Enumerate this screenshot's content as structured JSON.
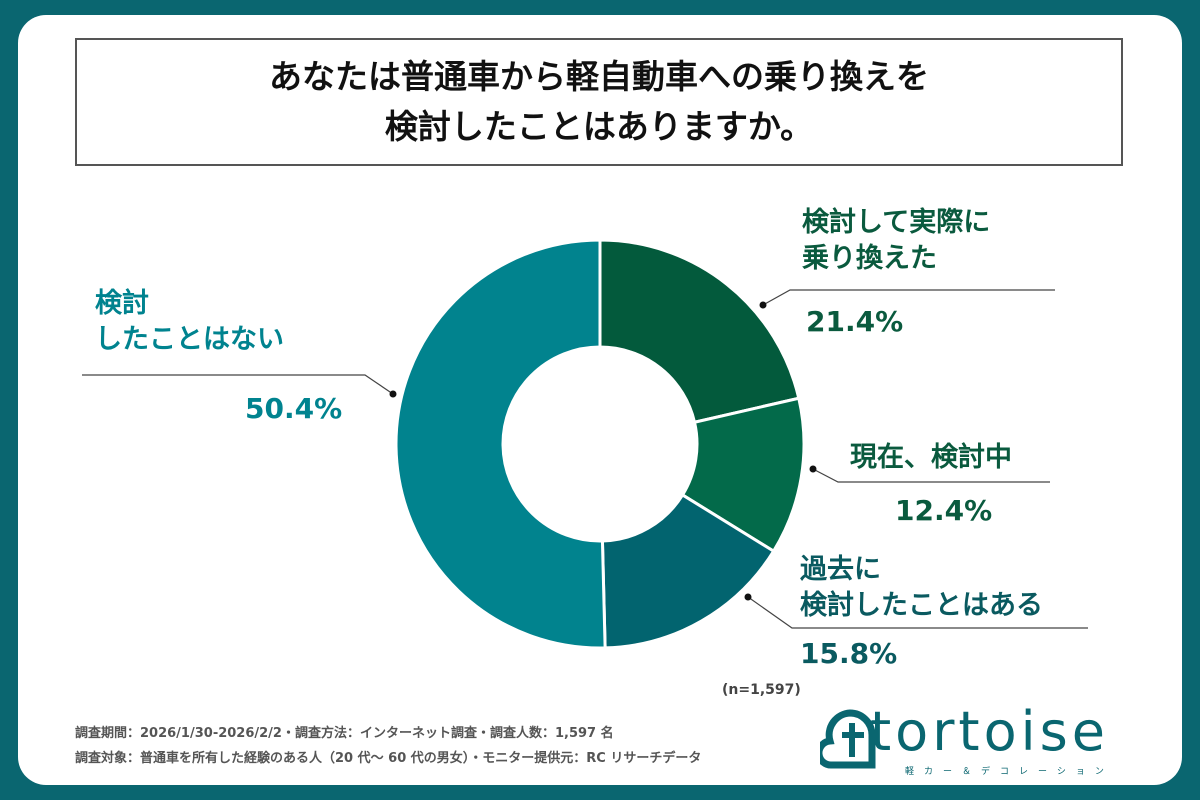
{
  "chart_data": {
    "type": "pie",
    "title": "あなたは普通車から軽自動車への乗り換えを\n検討したことはありますか。",
    "donut": true,
    "start": "top, clockwise",
    "slices": [
      {
        "label": "検討して実際に\n乗り換えた",
        "value": 21.4,
        "display": "21.4%",
        "color": "#035a3c",
        "text_color": "#0a5a3e"
      },
      {
        "label": "現在、検討中",
        "value": 12.4,
        "display": "12.4%",
        "color": "#036a4a",
        "text_color": "#0a5a3e"
      },
      {
        "label": "過去に\n検討したことはある",
        "value": 15.8,
        "display": "15.8%",
        "color": "#02646f",
        "text_color": "#0a5a60"
      },
      {
        "label": "検討\nしたことはない",
        "value": 50.4,
        "display": "50.4%",
        "color": "#01838e",
        "text_color": "#00838f"
      }
    ],
    "sample_size": "(n=1,597)"
  },
  "footer": {
    "line1": "調査期間：2026/1/30-2026/2/2・調査方法：インターネット調査・調査人数：1,597 名",
    "line2": "調査対象：普通車を所有した経験のある人（20 代～ 60 代の男女）・モニター提供元：RC リサーチデータ"
  },
  "logo": {
    "name": "tortoise",
    "tagline": "軽カー＆デコレーション"
  },
  "colors": {
    "background": "#0a6670"
  }
}
